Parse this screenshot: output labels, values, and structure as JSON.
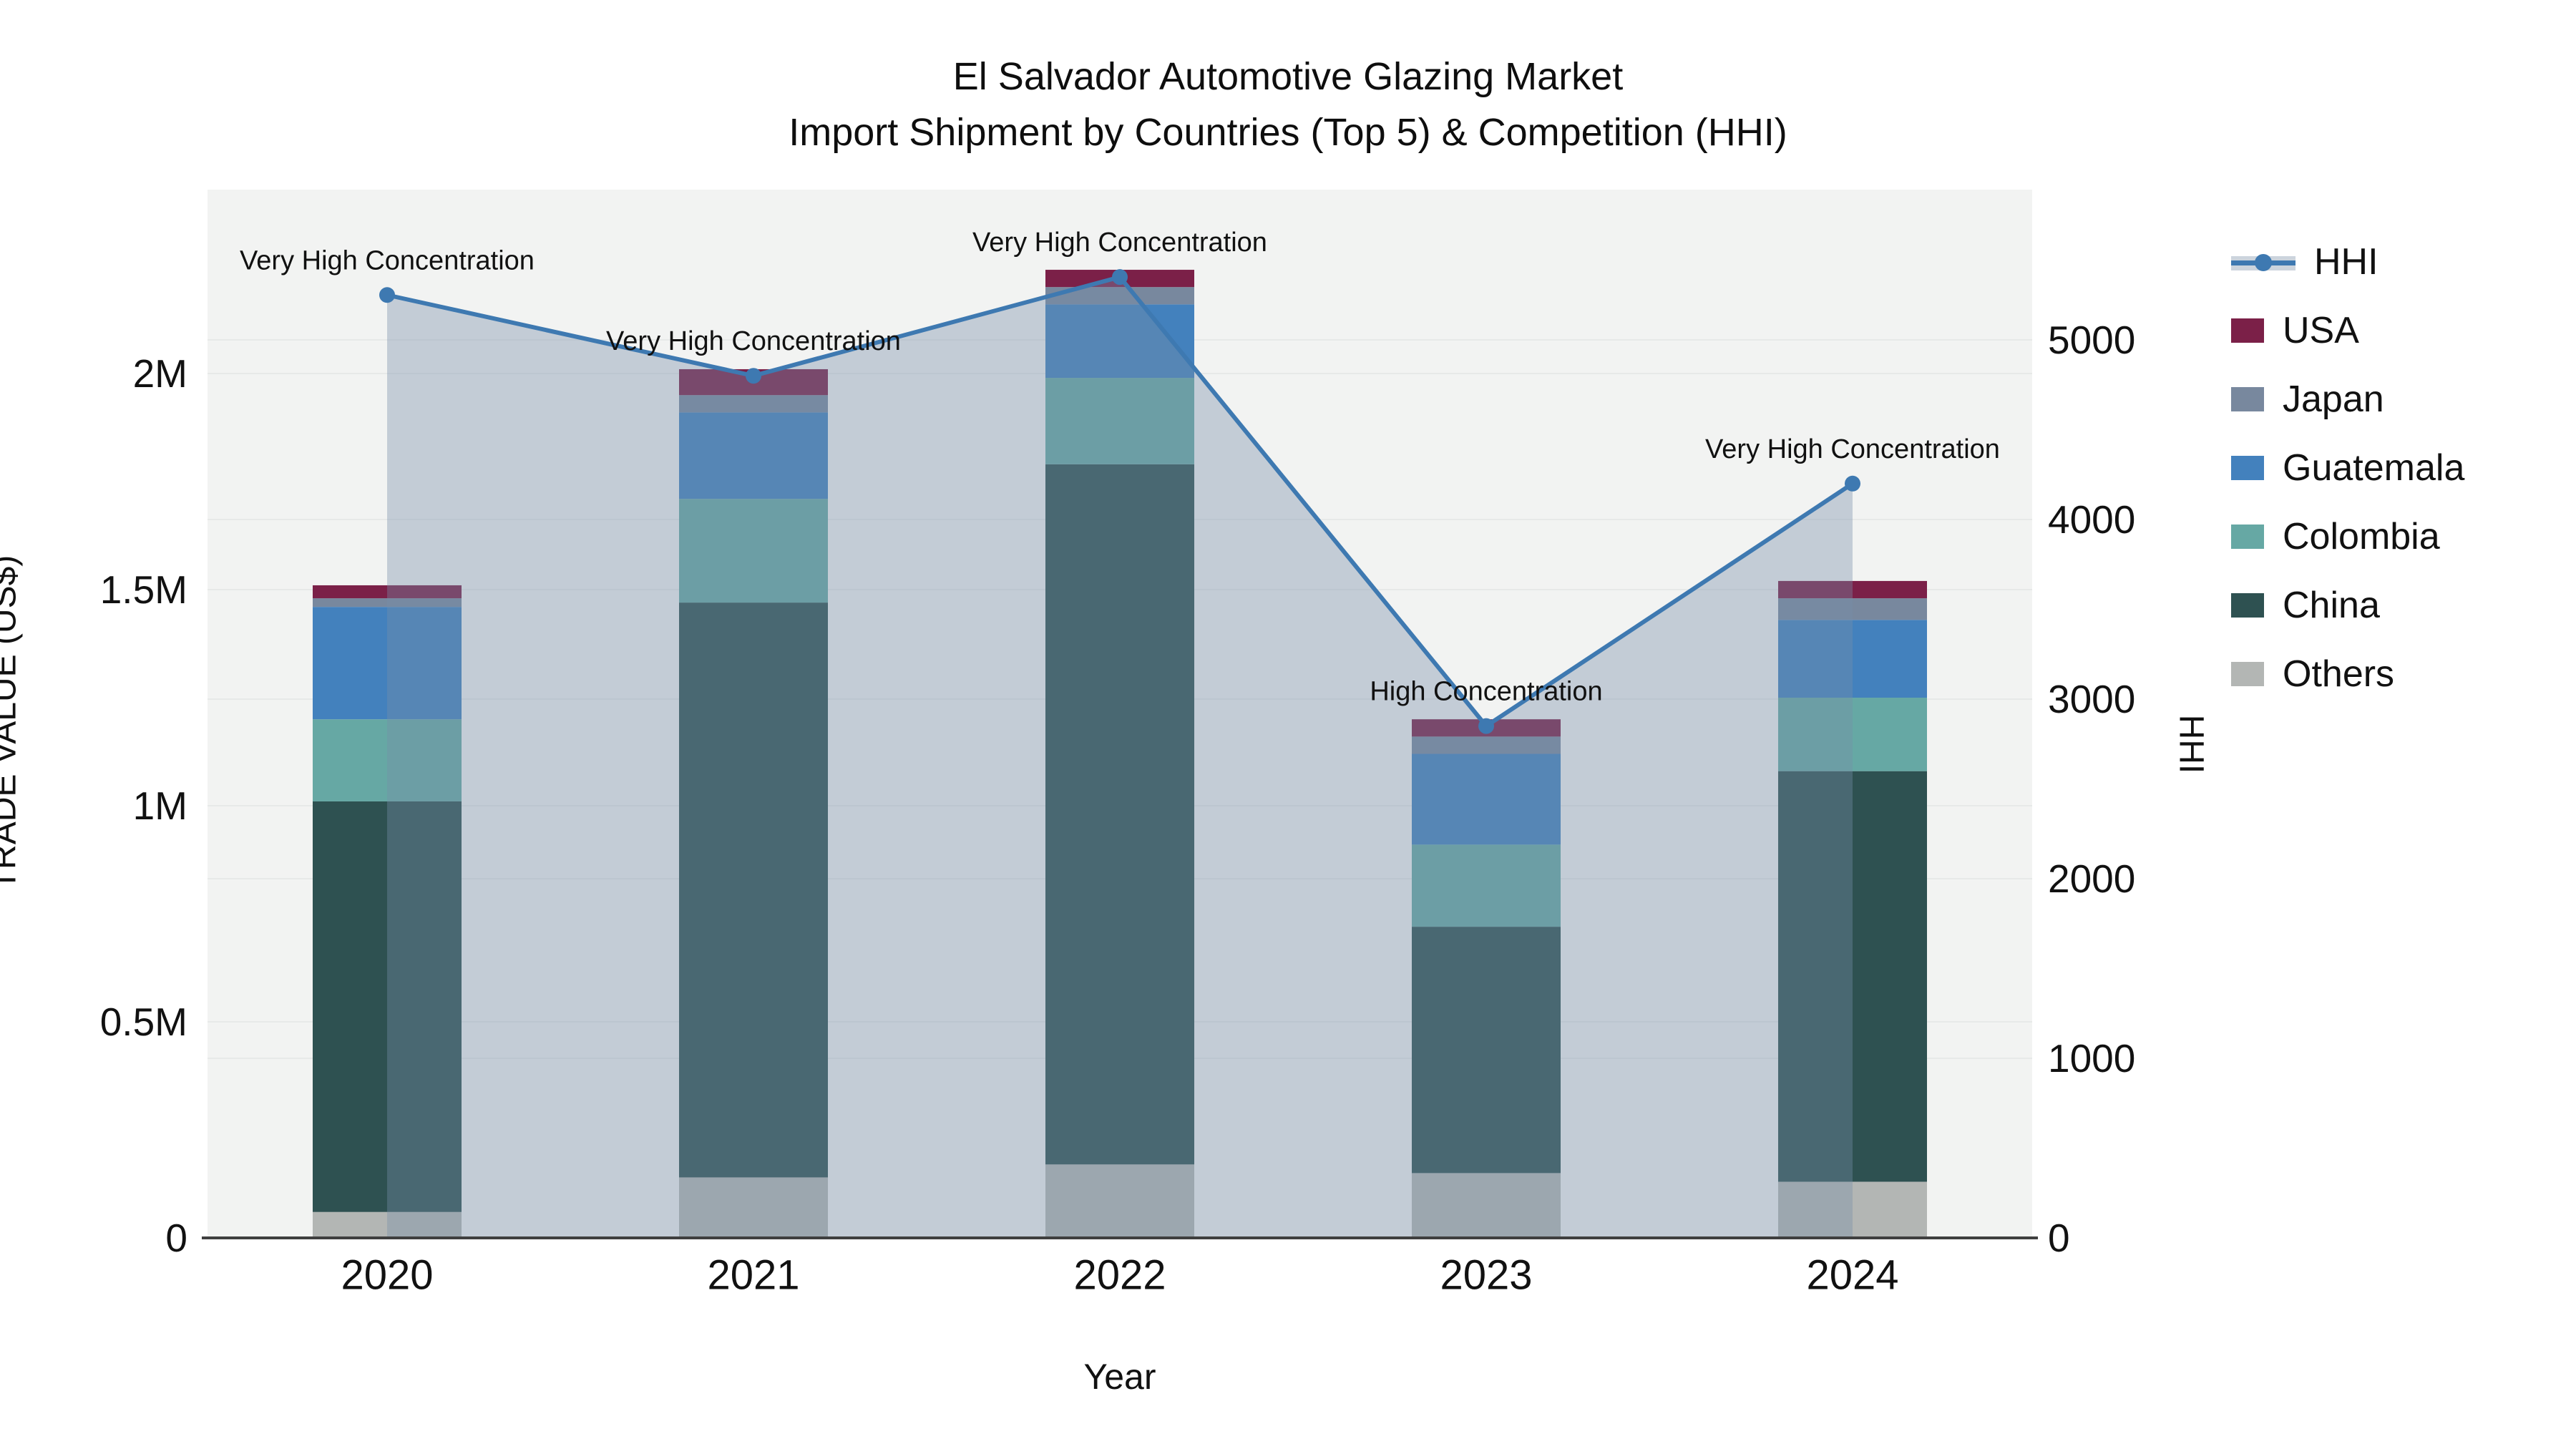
{
  "title": {
    "line1": "El Salvador Automotive Glazing Market",
    "line2": "Import Shipment by Countries (Top 5) & Competition (HHI)"
  },
  "axes": {
    "x_label": "Year",
    "y_left_label": "TRADE VALUE (US$)",
    "y_right_label": "HHI",
    "y_left_ticks": [
      "0",
      "0.5M",
      "1M",
      "1.5M",
      "2M"
    ],
    "y_left_tick_values_musd": [
      0,
      0.5,
      1,
      1.5,
      2
    ],
    "y_left_max_musd": 2.425,
    "y_right_ticks": [
      "0",
      "1000",
      "2000",
      "3000",
      "4000",
      "5000"
    ],
    "y_right_tick_values": [
      0,
      1000,
      2000,
      3000,
      4000,
      5000
    ],
    "y_right_max": 5836
  },
  "chart_data": {
    "type": "bar+line",
    "description": "Stacked import trade value bars by partner country with HHI competition line on secondary axis",
    "categories": [
      "2020",
      "2021",
      "2022",
      "2023",
      "2024"
    ],
    "units": "US$ millions",
    "stack_order_bottom_to_top": [
      "Others",
      "China",
      "Colombia",
      "Guatemala",
      "Japan",
      "USA"
    ],
    "series": [
      {
        "name": "Others",
        "color": "#b3b6b4",
        "values": [
          0.06,
          0.14,
          0.17,
          0.15,
          0.13
        ]
      },
      {
        "name": "China",
        "color": "#2e5151",
        "values": [
          0.95,
          1.33,
          1.62,
          0.57,
          0.95
        ]
      },
      {
        "name": "Colombia",
        "color": "#66a8a4",
        "values": [
          0.19,
          0.24,
          0.2,
          0.19,
          0.17
        ]
      },
      {
        "name": "Guatemala",
        "color": "#4381bd",
        "values": [
          0.26,
          0.2,
          0.17,
          0.21,
          0.18
        ]
      },
      {
        "name": "Japan",
        "color": "#78889e",
        "values": [
          0.02,
          0.04,
          0.04,
          0.04,
          0.05
        ]
      },
      {
        "name": "USA",
        "color": "#7b2048",
        "values": [
          0.03,
          0.06,
          0.04,
          0.04,
          0.04
        ]
      }
    ],
    "bar_totals_musd": [
      1.51,
      2.01,
      2.24,
      1.2,
      1.52
    ],
    "line_series": {
      "name": "HHI",
      "axis": "right",
      "color": "#3e79b1",
      "area_fill": "rgba(119,141,169,0.38)",
      "values": [
        5250,
        4800,
        5350,
        2850,
        4200
      ]
    },
    "annotations": [
      {
        "year": "2020",
        "text": "Very High Concentration"
      },
      {
        "year": "2021",
        "text": "Very High Concentration"
      },
      {
        "year": "2022",
        "text": "Very High Concentration"
      },
      {
        "year": "2023",
        "text": "High Concentration"
      },
      {
        "year": "2024",
        "text": "Very High Concentration"
      }
    ],
    "legend_position": "right",
    "grid": true
  },
  "legend": [
    {
      "label": "HHI",
      "type": "line",
      "color": "#3e79b1"
    },
    {
      "label": "USA",
      "type": "swatch",
      "color": "#7b2048"
    },
    {
      "label": "Japan",
      "type": "swatch",
      "color": "#78889e"
    },
    {
      "label": "Guatemala",
      "type": "swatch",
      "color": "#4381bd"
    },
    {
      "label": "Colombia",
      "type": "swatch",
      "color": "#66a8a4"
    },
    {
      "label": "China",
      "type": "swatch",
      "color": "#2e5151"
    },
    {
      "label": "Others",
      "type": "swatch",
      "color": "#b3b6b4"
    }
  ],
  "colors": {
    "plot_bg": "#f2f3f2",
    "paper_bg": "#ffffff",
    "gridline": "#e7e9e8",
    "axis_line": "#3f3f3f",
    "text": "#111111"
  }
}
